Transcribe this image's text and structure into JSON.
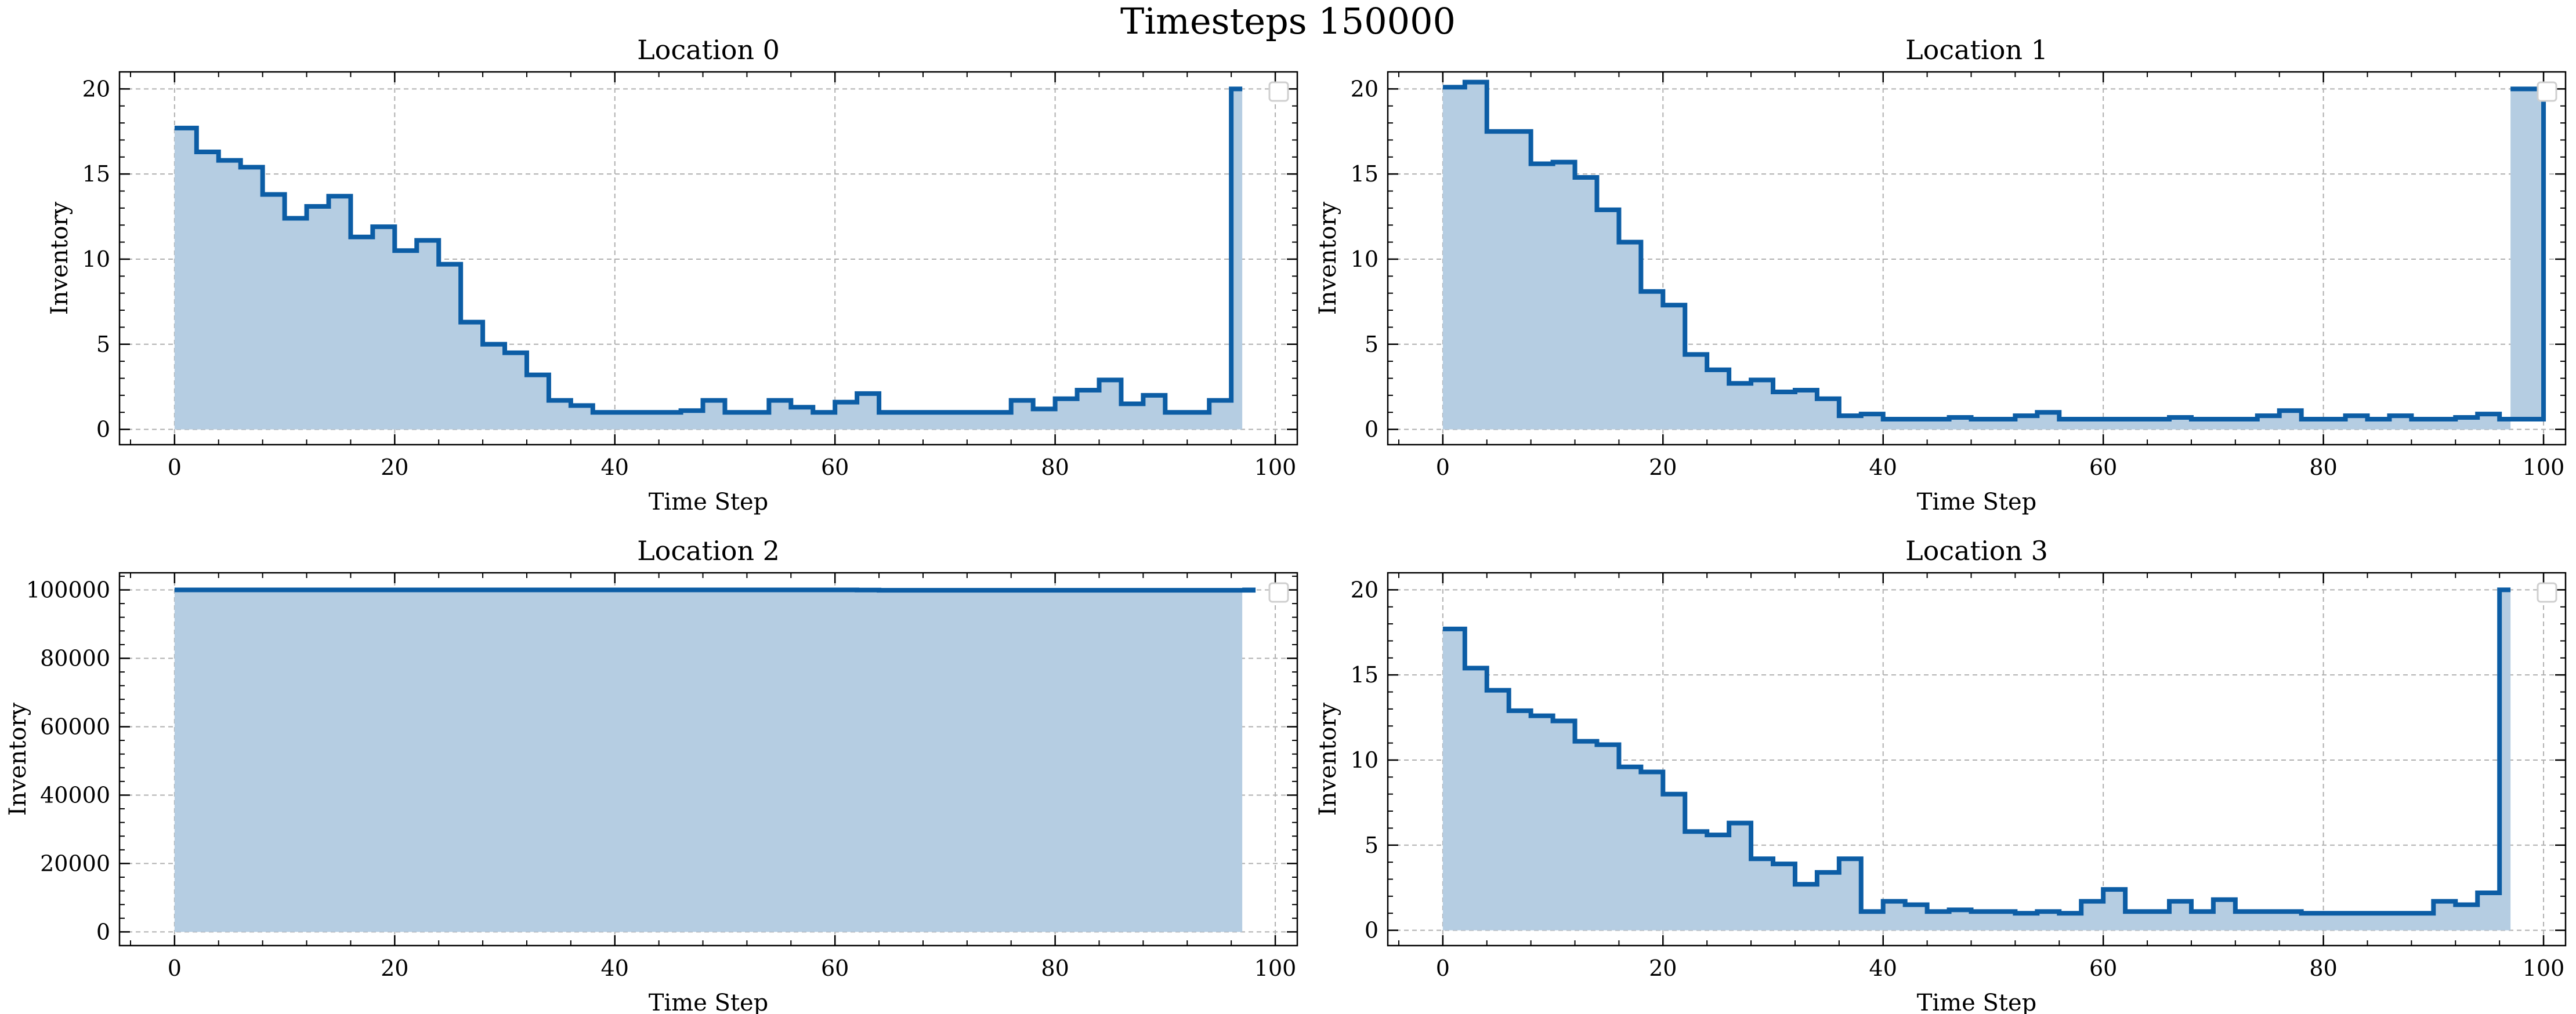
{
  "figure": {
    "title": "Timesteps 150000"
  },
  "colors": {
    "line": "#0c5da5",
    "fill": "#b5cde2",
    "grid": "#b0b0b0",
    "legend_box": "#cfcfcf"
  },
  "chart_data": [
    {
      "type": "area",
      "title": "Location 0",
      "xlabel": "Time Step",
      "ylabel": "Inventory",
      "xlim": [
        -5,
        102
      ],
      "ylim": [
        -0.9,
        21
      ],
      "xticks": [
        0,
        20,
        40,
        60,
        80,
        100
      ],
      "yticks": [
        0,
        5,
        10,
        15,
        20
      ],
      "grid": true,
      "legend": "empty, upper right",
      "step_width": 2,
      "x_end": 97,
      "values": [
        17.7,
        16.3,
        15.8,
        15.4,
        13.8,
        12.4,
        13.1,
        13.7,
        11.3,
        11.9,
        10.5,
        11.1,
        9.7,
        6.3,
        5.0,
        4.5,
        3.2,
        1.7,
        1.4,
        1.0,
        1.0,
        1.0,
        1.0,
        1.1,
        1.7,
        1.0,
        1.0,
        1.7,
        1.3,
        1.0,
        1.6,
        2.1,
        1.0,
        1.0,
        1.0,
        1.0,
        1.0,
        1.0,
        1.7,
        1.2,
        1.8,
        2.3,
        2.9,
        1.5,
        2.0,
        1.0,
        1.0,
        1.7
      ],
      "final_value": 20.0
    },
    {
      "type": "area",
      "title": "Location 1",
      "xlabel": "Time Step",
      "ylabel": "Inventory",
      "xlim": [
        -5,
        102
      ],
      "ylim": [
        -0.9,
        21
      ],
      "xticks": [
        0,
        20,
        40,
        60,
        80,
        100
      ],
      "yticks": [
        0,
        5,
        10,
        15,
        20
      ],
      "grid": true,
      "legend": "empty, upper right",
      "step_width": 2,
      "x_end": 97,
      "values": [
        20.1,
        20.4,
        17.5,
        17.5,
        15.6,
        15.7,
        14.8,
        12.9,
        11.0,
        8.1,
        7.3,
        4.4,
        3.5,
        2.7,
        2.9,
        2.2,
        2.3,
        1.8,
        0.8,
        0.9,
        0.6,
        0.6,
        0.6,
        0.7,
        0.6,
        0.6,
        0.8,
        1.0,
        0.6,
        0.6,
        0.6,
        0.6,
        0.6,
        0.7,
        0.6,
        0.6,
        0.6,
        0.8,
        1.1,
        0.6,
        0.6,
        0.8,
        0.6,
        0.8,
        0.6,
        0.6,
        0.7,
        0.9,
        0.6,
        0.6
      ],
      "final_value": 20.0
    },
    {
      "type": "area",
      "title": "Location 2",
      "xlabel": "Time Step",
      "ylabel": "Inventory",
      "xlim": [
        -5,
        102
      ],
      "ylim": [
        -4000,
        105000
      ],
      "xticks": [
        0,
        20,
        40,
        60,
        80,
        100
      ],
      "yticks": [
        0,
        20000,
        40000,
        60000,
        80000,
        100000
      ],
      "grid": true,
      "legend": "empty, upper right",
      "step_width": 2,
      "x_end": 97,
      "values": [
        100000,
        100000,
        100000,
        100000,
        100000,
        100000,
        100000,
        100000,
        100000,
        100000,
        100000,
        100000,
        100000,
        100000,
        100000,
        100000,
        100000,
        100000,
        100000,
        100000,
        100000,
        100000,
        100000,
        100000,
        100000,
        100000,
        100000,
        100000,
        100000,
        100000,
        100000,
        99950,
        99900,
        99900,
        99900,
        99900,
        99900,
        99900,
        99900,
        99900,
        99900,
        99900,
        99900,
        99900,
        99900,
        99900,
        99900,
        99900,
        99900
      ],
      "final_value": 100000
    },
    {
      "type": "area",
      "title": "Location 3",
      "xlabel": "Time Step",
      "ylabel": "Inventory",
      "xlim": [
        -5,
        102
      ],
      "ylim": [
        -0.9,
        21
      ],
      "xticks": [
        0,
        20,
        40,
        60,
        80,
        100
      ],
      "yticks": [
        0,
        5,
        10,
        15,
        20
      ],
      "grid": true,
      "legend": "empty, upper right",
      "step_width": 2,
      "x_end": 97,
      "values": [
        17.7,
        15.4,
        14.1,
        12.9,
        12.6,
        12.3,
        11.1,
        10.9,
        9.6,
        9.3,
        8.0,
        5.8,
        5.6,
        6.3,
        4.2,
        3.9,
        2.7,
        3.4,
        4.2,
        1.1,
        1.7,
        1.5,
        1.1,
        1.2,
        1.1,
        1.1,
        1.0,
        1.1,
        1.0,
        1.7,
        2.4,
        1.1,
        1.1,
        1.7,
        1.1,
        1.8,
        1.1,
        1.1,
        1.1,
        1.0,
        1.0,
        1.0,
        1.0,
        1.0,
        1.0,
        1.7,
        1.5,
        2.2
      ],
      "final_value": 20.0
    }
  ]
}
